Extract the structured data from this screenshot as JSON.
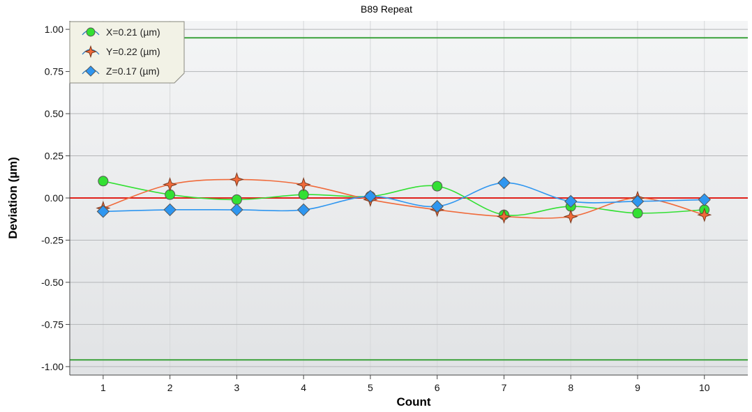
{
  "chart_data": {
    "type": "line",
    "title": "B89 Repeat",
    "xlabel": "Count",
    "ylabel": "Deviation (µm)",
    "x": [
      1,
      2,
      3,
      4,
      5,
      6,
      7,
      8,
      9,
      10
    ],
    "xlim": [
      0.5,
      10.65
    ],
    "ylim": [
      -1.05,
      1.05
    ],
    "yticks": [
      "1.00",
      "0.75",
      "0.50",
      "0.25",
      "0.00",
      "-0.25",
      "-0.50",
      "-0.75",
      "-1.00"
    ],
    "ytick_values": [
      1.0,
      0.75,
      0.5,
      0.25,
      0.0,
      -0.25,
      -0.5,
      -0.75,
      -1.0
    ],
    "xticks": [
      "1",
      "2",
      "3",
      "4",
      "5",
      "6",
      "7",
      "8",
      "9",
      "10"
    ],
    "grid": true,
    "legend_position": "top-left",
    "reference_lines": [
      {
        "value": 0.95,
        "color": "#3aa13a"
      },
      {
        "value": 0.0,
        "color": "#e0201a"
      },
      {
        "value": -0.96,
        "color": "#3aa13a"
      }
    ],
    "series": [
      {
        "name": "X=0.21 (µm)",
        "color": "#33e033",
        "marker": "circle",
        "values": [
          0.1,
          0.02,
          -0.01,
          0.02,
          0.01,
          0.07,
          -0.1,
          -0.05,
          -0.09,
          -0.07
        ]
      },
      {
        "name": "Y=0.22 (µm)",
        "color": "#f06a3a",
        "marker": "star",
        "values": [
          -0.06,
          0.08,
          0.11,
          0.08,
          -0.01,
          -0.07,
          -0.11,
          -0.11,
          0.0,
          -0.1
        ]
      },
      {
        "name": "Z=0.17 (µm)",
        "color": "#2e96f0",
        "marker": "diamond",
        "values": [
          -0.08,
          -0.07,
          -0.07,
          -0.07,
          0.01,
          -0.05,
          0.09,
          -0.02,
          -0.02,
          -0.01
        ]
      }
    ]
  }
}
